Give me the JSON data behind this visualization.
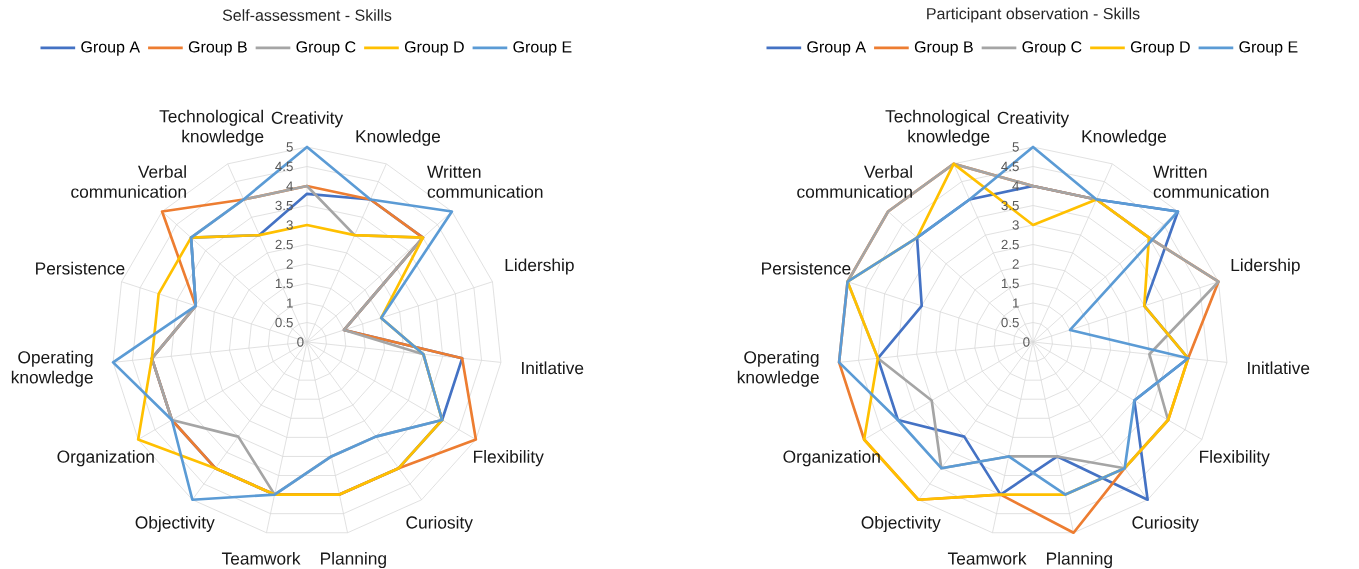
{
  "chart_data": [
    {
      "type": "radar",
      "title": "Self-assessment - Skills",
      "categories": [
        "Creativity",
        "Knowledge",
        "Written communication",
        "Lidership",
        "Initlative",
        "Flexibility",
        "Curiosity",
        "Planning",
        "Teamwork",
        "Objectivity",
        "Organization",
        "Operating knowledge",
        "Persistence",
        "Verbal communication",
        "Technological knowledge"
      ],
      "series": [
        {
          "name": "Group A",
          "color": "#4472c4",
          "values": [
            3.8,
            4,
            4,
            1,
            4,
            4,
            4,
            4,
            4,
            4,
            4,
            4,
            3,
            4,
            3
          ]
        },
        {
          "name": "Group B",
          "color": "#ed7d31",
          "values": [
            4,
            4,
            4,
            1,
            4,
            5,
            4,
            4,
            4,
            4,
            4,
            4,
            3,
            5,
            4
          ]
        },
        {
          "name": "Group C",
          "color": "#a5a5a5",
          "values": [
            4,
            3,
            4,
            1,
            3,
            4,
            3,
            3,
            4,
            3,
            4,
            4,
            3,
            4,
            4
          ]
        },
        {
          "name": "Group D",
          "color": "#ffc000",
          "values": [
            3,
            3,
            4,
            2,
            3,
            4,
            4,
            4,
            4,
            4,
            5,
            4,
            4,
            4,
            3
          ]
        },
        {
          "name": "Group E",
          "color": "#5b9bd5",
          "values": [
            5,
            4,
            5,
            2,
            3,
            4,
            3,
            3,
            4,
            5,
            4,
            5,
            3,
            4,
            4
          ]
        }
      ],
      "ylim": [
        0,
        5
      ],
      "yticks": [
        {
          "value": 0,
          "label": "0"
        },
        0.5,
        1,
        1.5,
        2,
        2.5,
        3,
        3.5,
        4,
        4.5,
        5
      ],
      "grid": true,
      "legend": "top"
    },
    {
      "type": "radar",
      "title": "Participant observation - Skills",
      "categories": [
        "Creativity",
        "Knowledge",
        "Written communication",
        "Lidership",
        "Initlative",
        "Flexibility",
        "Curiosity",
        "Planning",
        "Teamwork",
        "Objectivity",
        "Organization",
        "Operating knowledge",
        "Persistence",
        "Verbal communication",
        "Technological knowledge"
      ],
      "series": [
        {
          "name": "Group A",
          "color": "#4472c4",
          "values": [
            4,
            4,
            5,
            3,
            4,
            3,
            5,
            3,
            4,
            3,
            4,
            4,
            3,
            4,
            4
          ]
        },
        {
          "name": "Group B",
          "color": "#ed7d31",
          "values": [
            4,
            4,
            4,
            5,
            4,
            4,
            4,
            5,
            4,
            5,
            5,
            5,
            5,
            5,
            5
          ]
        },
        {
          "name": "Group C",
          "color": "#a5a5a5",
          "values": [
            4,
            4,
            4,
            5,
            3,
            4,
            4,
            3,
            3,
            4,
            3,
            4,
            5,
            5,
            5
          ]
        },
        {
          "name": "Group D",
          "color": "#ffc000",
          "values": [
            3,
            4,
            4,
            3,
            4,
            4,
            4,
            4,
            4,
            5,
            5,
            4,
            5,
            4,
            5
          ]
        },
        {
          "name": "Group E",
          "color": "#5b9bd5",
          "values": [
            5,
            4,
            5,
            1,
            4,
            3,
            4,
            4,
            3,
            4,
            4,
            5,
            5,
            4,
            4
          ]
        }
      ],
      "ylim": [
        0,
        5
      ],
      "yticks": [
        {
          "value": 0,
          "label": "0"
        },
        0.5,
        1,
        1.5,
        2,
        2.5,
        3,
        3.5,
        4,
        4.5,
        5
      ],
      "grid": true,
      "legend": "top"
    }
  ]
}
